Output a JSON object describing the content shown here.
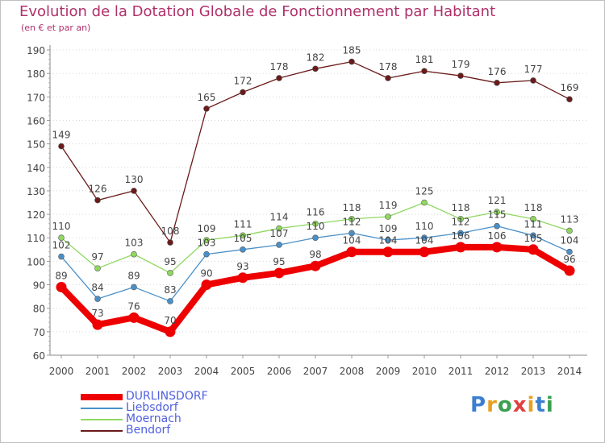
{
  "title": "Evolution de la Dotation Globale de Fonctionnement par Habitant",
  "subtitle": "(en € et par an)",
  "brand": "Proxiti",
  "chart_data": {
    "type": "line",
    "title": "Evolution de la Dotation Globale de Fonctionnement par Habitant",
    "subtitle": "(en € et par an)",
    "xlabel": "",
    "ylabel": "",
    "categories": [
      "2000",
      "2001",
      "2002",
      "2003",
      "2004",
      "2005",
      "2006",
      "2007",
      "2008",
      "2009",
      "2010",
      "2011",
      "2012",
      "2013",
      "2014"
    ],
    "ylim": [
      60,
      190
    ],
    "yticks": [
      60,
      70,
      80,
      90,
      100,
      110,
      120,
      130,
      140,
      150,
      160,
      170,
      180,
      190
    ],
    "grid": true,
    "legend_position": "bottom-left",
    "series": [
      {
        "name": "DURLINSDORF",
        "color": "#ee0000",
        "values": [
          89,
          73,
          76,
          70,
          90,
          93,
          95,
          98,
          104,
          104,
          104,
          106,
          106,
          105,
          96
        ]
      },
      {
        "name": "Liebsdorf",
        "color": "#4a90c8",
        "values": [
          102,
          84,
          89,
          83,
          103,
          105,
          107,
          110,
          112,
          109,
          110,
          112,
          115,
          111,
          104
        ]
      },
      {
        "name": "Moernach",
        "color": "#8fd860",
        "values": [
          110,
          97,
          103,
          95,
          109,
          111,
          114,
          116,
          118,
          119,
          125,
          118,
          121,
          118,
          113
        ]
      },
      {
        "name": "Bendorf",
        "color": "#6b1a1a",
        "values": [
          149,
          126,
          130,
          108,
          165,
          172,
          178,
          182,
          185,
          178,
          181,
          179,
          176,
          177,
          169
        ]
      }
    ]
  }
}
